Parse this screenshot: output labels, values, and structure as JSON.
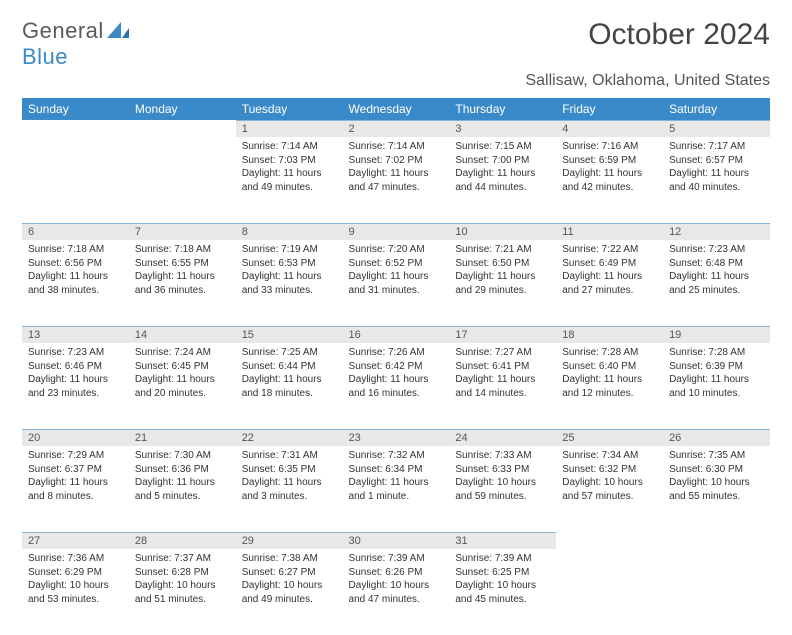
{
  "brand": {
    "general": "General",
    "blue": "Blue"
  },
  "title": "October 2024",
  "location": "Sallisaw, Oklahoma, United States",
  "colors": {
    "header_bg": "#3a8ac9",
    "header_text": "#ffffff",
    "daynum_bg": "#e8e8e8",
    "separator": "#8ab4d6",
    "text": "#333333"
  },
  "day_labels": [
    "Sunday",
    "Monday",
    "Tuesday",
    "Wednesday",
    "Thursday",
    "Friday",
    "Saturday"
  ],
  "weeks": [
    [
      null,
      null,
      {
        "n": "1",
        "sunrise": "7:14 AM",
        "sunset": "7:03 PM",
        "daylight": "11 hours and 49 minutes."
      },
      {
        "n": "2",
        "sunrise": "7:14 AM",
        "sunset": "7:02 PM",
        "daylight": "11 hours and 47 minutes."
      },
      {
        "n": "3",
        "sunrise": "7:15 AM",
        "sunset": "7:00 PM",
        "daylight": "11 hours and 44 minutes."
      },
      {
        "n": "4",
        "sunrise": "7:16 AM",
        "sunset": "6:59 PM",
        "daylight": "11 hours and 42 minutes."
      },
      {
        "n": "5",
        "sunrise": "7:17 AM",
        "sunset": "6:57 PM",
        "daylight": "11 hours and 40 minutes."
      }
    ],
    [
      {
        "n": "6",
        "sunrise": "7:18 AM",
        "sunset": "6:56 PM",
        "daylight": "11 hours and 38 minutes."
      },
      {
        "n": "7",
        "sunrise": "7:18 AM",
        "sunset": "6:55 PM",
        "daylight": "11 hours and 36 minutes."
      },
      {
        "n": "8",
        "sunrise": "7:19 AM",
        "sunset": "6:53 PM",
        "daylight": "11 hours and 33 minutes."
      },
      {
        "n": "9",
        "sunrise": "7:20 AM",
        "sunset": "6:52 PM",
        "daylight": "11 hours and 31 minutes."
      },
      {
        "n": "10",
        "sunrise": "7:21 AM",
        "sunset": "6:50 PM",
        "daylight": "11 hours and 29 minutes."
      },
      {
        "n": "11",
        "sunrise": "7:22 AM",
        "sunset": "6:49 PM",
        "daylight": "11 hours and 27 minutes."
      },
      {
        "n": "12",
        "sunrise": "7:23 AM",
        "sunset": "6:48 PM",
        "daylight": "11 hours and 25 minutes."
      }
    ],
    [
      {
        "n": "13",
        "sunrise": "7:23 AM",
        "sunset": "6:46 PM",
        "daylight": "11 hours and 23 minutes."
      },
      {
        "n": "14",
        "sunrise": "7:24 AM",
        "sunset": "6:45 PM",
        "daylight": "11 hours and 20 minutes."
      },
      {
        "n": "15",
        "sunrise": "7:25 AM",
        "sunset": "6:44 PM",
        "daylight": "11 hours and 18 minutes."
      },
      {
        "n": "16",
        "sunrise": "7:26 AM",
        "sunset": "6:42 PM",
        "daylight": "11 hours and 16 minutes."
      },
      {
        "n": "17",
        "sunrise": "7:27 AM",
        "sunset": "6:41 PM",
        "daylight": "11 hours and 14 minutes."
      },
      {
        "n": "18",
        "sunrise": "7:28 AM",
        "sunset": "6:40 PM",
        "daylight": "11 hours and 12 minutes."
      },
      {
        "n": "19",
        "sunrise": "7:28 AM",
        "sunset": "6:39 PM",
        "daylight": "11 hours and 10 minutes."
      }
    ],
    [
      {
        "n": "20",
        "sunrise": "7:29 AM",
        "sunset": "6:37 PM",
        "daylight": "11 hours and 8 minutes."
      },
      {
        "n": "21",
        "sunrise": "7:30 AM",
        "sunset": "6:36 PM",
        "daylight": "11 hours and 5 minutes."
      },
      {
        "n": "22",
        "sunrise": "7:31 AM",
        "sunset": "6:35 PM",
        "daylight": "11 hours and 3 minutes."
      },
      {
        "n": "23",
        "sunrise": "7:32 AM",
        "sunset": "6:34 PM",
        "daylight": "11 hours and 1 minute."
      },
      {
        "n": "24",
        "sunrise": "7:33 AM",
        "sunset": "6:33 PM",
        "daylight": "10 hours and 59 minutes."
      },
      {
        "n": "25",
        "sunrise": "7:34 AM",
        "sunset": "6:32 PM",
        "daylight": "10 hours and 57 minutes."
      },
      {
        "n": "26",
        "sunrise": "7:35 AM",
        "sunset": "6:30 PM",
        "daylight": "10 hours and 55 minutes."
      }
    ],
    [
      {
        "n": "27",
        "sunrise": "7:36 AM",
        "sunset": "6:29 PM",
        "daylight": "10 hours and 53 minutes."
      },
      {
        "n": "28",
        "sunrise": "7:37 AM",
        "sunset": "6:28 PM",
        "daylight": "10 hours and 51 minutes."
      },
      {
        "n": "29",
        "sunrise": "7:38 AM",
        "sunset": "6:27 PM",
        "daylight": "10 hours and 49 minutes."
      },
      {
        "n": "30",
        "sunrise": "7:39 AM",
        "sunset": "6:26 PM",
        "daylight": "10 hours and 47 minutes."
      },
      {
        "n": "31",
        "sunrise": "7:39 AM",
        "sunset": "6:25 PM",
        "daylight": "10 hours and 45 minutes."
      },
      null,
      null
    ]
  ],
  "labels": {
    "sunrise": "Sunrise:",
    "sunset": "Sunset:",
    "daylight": "Daylight:"
  }
}
